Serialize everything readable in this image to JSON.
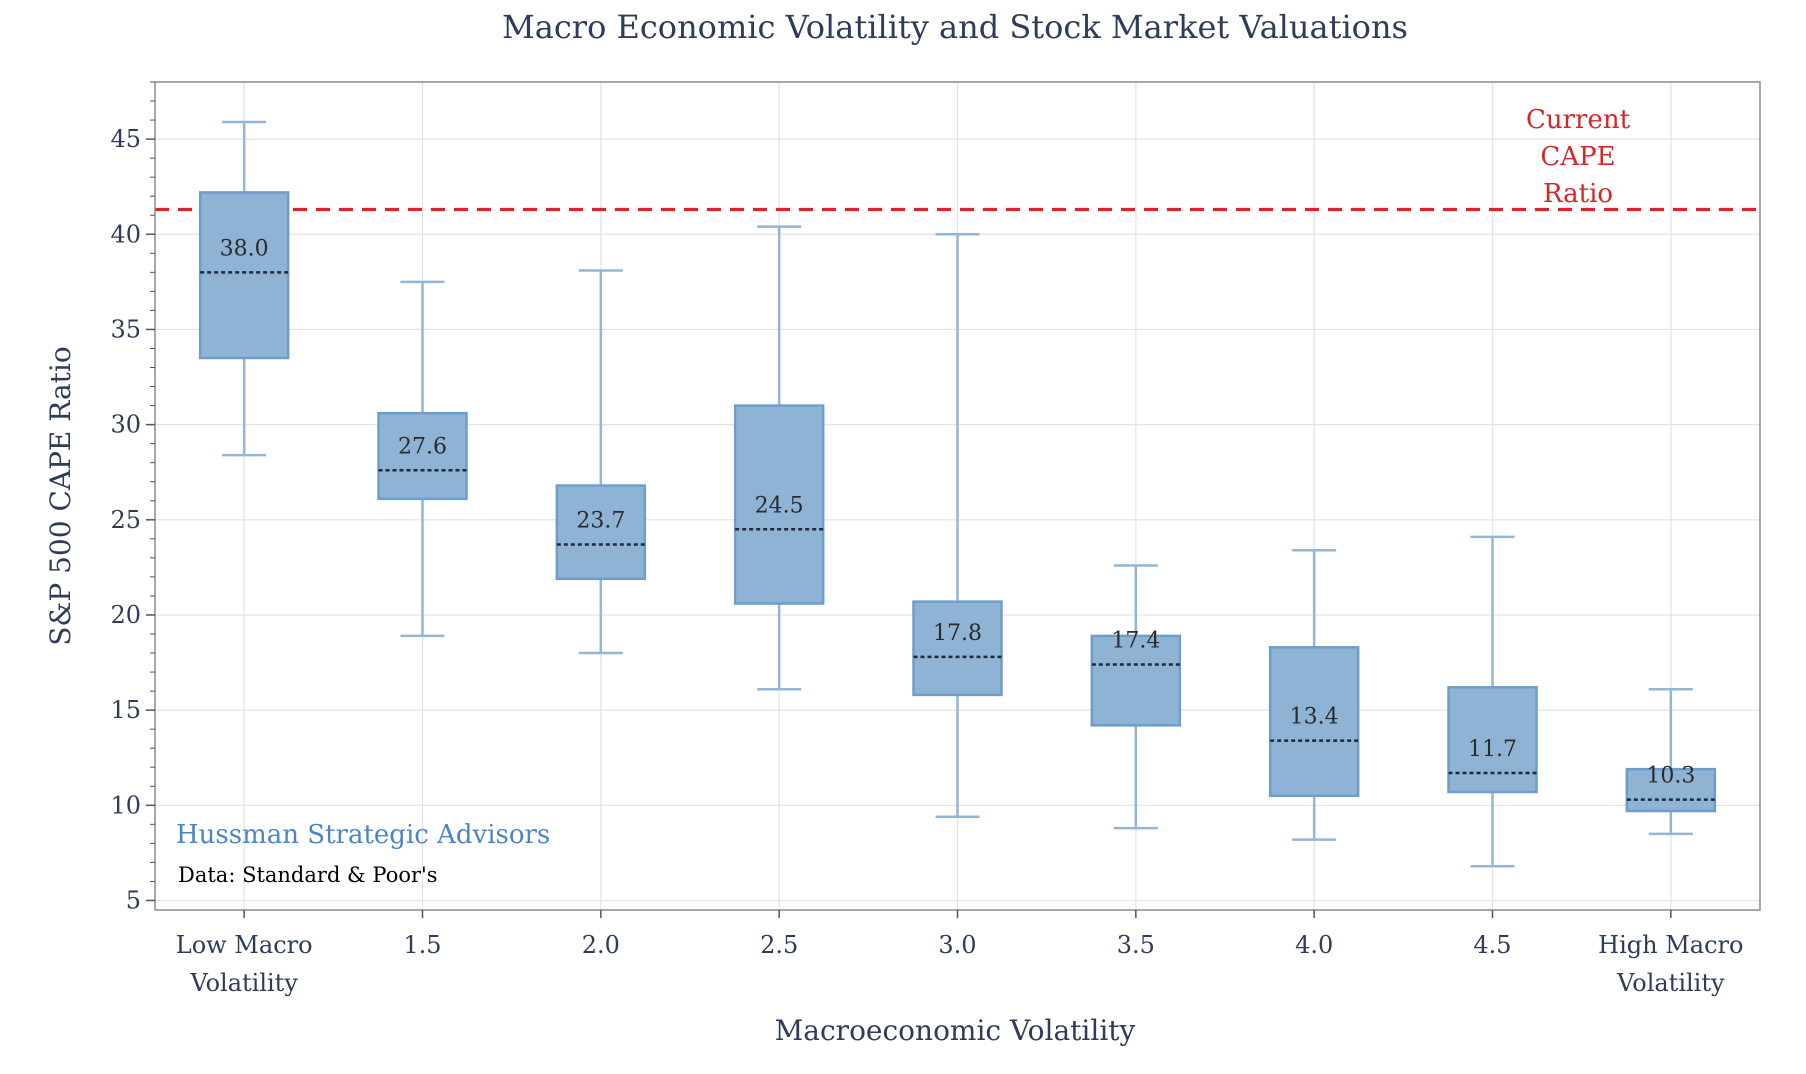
{
  "colors": {
    "box_fill": "#8fb3d5",
    "box_stroke": "#6f9dc9",
    "whisker": "#94b6d6",
    "median_line": "#1b2a3d",
    "reference_line": "#d62728",
    "text": "#2e3c5a",
    "brand": "#4a86c5",
    "grid": "#e3e3e3",
    "frame": "#8c8c8c"
  },
  "chart_data": {
    "type": "box",
    "title": "Macro Economic Volatility and Stock Market Valuations",
    "xlabel": "Macroeconomic Volatility",
    "ylabel": "S&P 500 CAPE Ratio",
    "ylim": [
      4.5,
      48
    ],
    "yticks": [
      5,
      10,
      15,
      20,
      25,
      30,
      35,
      40,
      45
    ],
    "yminor_step": 1,
    "grid": true,
    "categories": [
      [
        "Low Macro",
        "Volatility"
      ],
      [
        "1.5"
      ],
      [
        "2.0"
      ],
      [
        "2.5"
      ],
      [
        "3.0"
      ],
      [
        "3.5"
      ],
      [
        "4.0"
      ],
      [
        "4.5"
      ],
      [
        "High Macro",
        "Volatility"
      ]
    ],
    "boxes": [
      {
        "whisker_low": 28.4,
        "q1": 33.5,
        "median": 38.0,
        "q3": 42.2,
        "whisker_high": 45.9,
        "median_label": "38.0"
      },
      {
        "whisker_low": 18.9,
        "q1": 26.1,
        "median": 27.6,
        "q3": 30.6,
        "whisker_high": 37.5,
        "median_label": "27.6"
      },
      {
        "whisker_low": 18.0,
        "q1": 21.9,
        "median": 23.7,
        "q3": 26.8,
        "whisker_high": 38.1,
        "median_label": "23.7"
      },
      {
        "whisker_low": 16.1,
        "q1": 20.6,
        "median": 24.5,
        "q3": 31.0,
        "whisker_high": 40.4,
        "median_label": "24.5"
      },
      {
        "whisker_low": 9.4,
        "q1": 15.8,
        "median": 17.8,
        "q3": 20.7,
        "whisker_high": 40.0,
        "median_label": "17.8"
      },
      {
        "whisker_low": 8.8,
        "q1": 14.2,
        "median": 17.4,
        "q3": 18.9,
        "whisker_high": 22.6,
        "median_label": "17.4"
      },
      {
        "whisker_low": 8.2,
        "q1": 10.5,
        "median": 13.4,
        "q3": 18.3,
        "whisker_high": 23.4,
        "median_label": "13.4"
      },
      {
        "whisker_low": 6.8,
        "q1": 10.7,
        "median": 11.7,
        "q3": 16.2,
        "whisker_high": 24.1,
        "median_label": "11.7"
      },
      {
        "whisker_low": 8.5,
        "q1": 9.7,
        "median": 10.3,
        "q3": 11.9,
        "whisker_high": 16.1,
        "median_label": "10.3"
      }
    ],
    "reference_line": {
      "value": 41.3,
      "label": [
        "Current",
        "CAPE",
        "Ratio"
      ]
    },
    "annotations": {
      "brand": "Hussman Strategic Advisors",
      "source": "Data: Standard & Poor's"
    }
  }
}
